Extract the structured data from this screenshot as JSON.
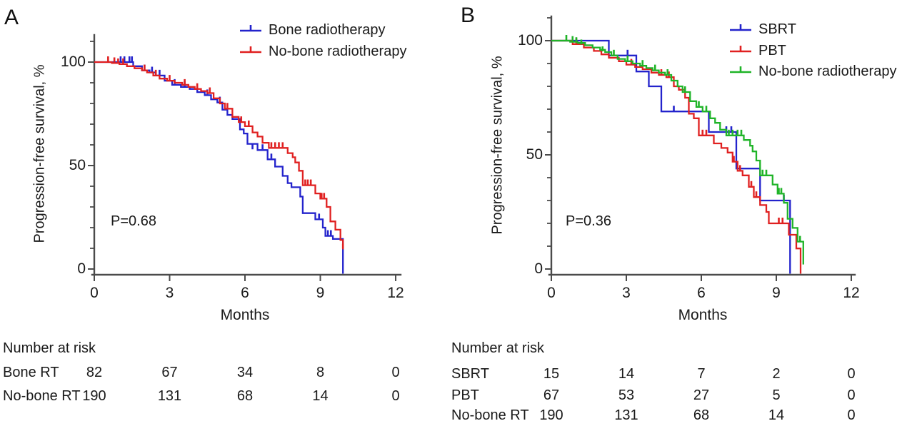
{
  "chart_data": [
    {
      "type": "line",
      "subtype": "kaplan-meier",
      "panel_label": "A",
      "xlabel": "Months",
      "ylabel": "Progression-free survival, %",
      "xlim": [
        0,
        12
      ],
      "ylim": [
        0,
        100
      ],
      "x_ticks": [
        0,
        3,
        6,
        9,
        12
      ],
      "y_ticks": [
        0,
        50,
        100
      ],
      "y_minor_step": 10,
      "grid": false,
      "legend_position": "top-right-inside",
      "p_value": "P=0.68",
      "series": [
        {
          "name": "Bone radiotherapy",
          "color": "#2323cc",
          "steps": [
            [
              0,
              100
            ],
            [
              1.55,
              98
            ],
            [
              1.9,
              96
            ],
            [
              2.2,
              95
            ],
            [
              2.45,
              93.5
            ],
            [
              2.8,
              91
            ],
            [
              3.1,
              89
            ],
            [
              3.45,
              88
            ],
            [
              3.8,
              87
            ],
            [
              4.1,
              85.5
            ],
            [
              4.4,
              84
            ],
            [
              4.65,
              82
            ],
            [
              4.9,
              80.5
            ],
            [
              5.1,
              77
            ],
            [
              5.3,
              74.5
            ],
            [
              5.5,
              72.5
            ],
            [
              5.8,
              67.5
            ],
            [
              5.95,
              65.5
            ],
            [
              6.1,
              60.5
            ],
            [
              6.5,
              57.5
            ],
            [
              6.9,
              53
            ],
            [
              7.2,
              49.5
            ],
            [
              7.5,
              45
            ],
            [
              7.7,
              41.5
            ],
            [
              7.85,
              39.5
            ],
            [
              8.2,
              35
            ],
            [
              8.3,
              27
            ],
            [
              8.8,
              24
            ],
            [
              9.1,
              20
            ],
            [
              9.2,
              16
            ],
            [
              9.5,
              14.5
            ],
            [
              9.9,
              0
            ]
          ],
          "censors": [
            [
              1.05,
              100
            ],
            [
              1.2,
              100
            ],
            [
              1.4,
              100
            ],
            [
              1.5,
              100
            ],
            [
              2.0,
              96
            ],
            [
              2.3,
              95
            ],
            [
              2.6,
              93.5
            ],
            [
              3.2,
              89
            ],
            [
              3.6,
              88
            ],
            [
              4.5,
              84
            ],
            [
              5.0,
              80.5
            ],
            [
              6.3,
              57.5
            ],
            [
              6.7,
              57.5
            ],
            [
              7.05,
              53
            ],
            [
              8.95,
              24
            ],
            [
              9.3,
              16
            ],
            [
              9.42,
              16
            ]
          ]
        },
        {
          "name": "No-bone radiotherapy",
          "color": "#e02020",
          "steps": [
            [
              0,
              100
            ],
            [
              0.7,
              99.5
            ],
            [
              1.0,
              99
            ],
            [
              1.3,
              98
            ],
            [
              1.6,
              97
            ],
            [
              1.9,
              96
            ],
            [
              2.1,
              95
            ],
            [
              2.35,
              93.5
            ],
            [
              2.6,
              92
            ],
            [
              2.9,
              91
            ],
            [
              3.2,
              90
            ],
            [
              3.5,
              89
            ],
            [
              3.75,
              88
            ],
            [
              4.0,
              87
            ],
            [
              4.25,
              86
            ],
            [
              4.5,
              85
            ],
            [
              4.75,
              82.5
            ],
            [
              5.0,
              80
            ],
            [
              5.2,
              77.5
            ],
            [
              5.5,
              73.5
            ],
            [
              5.75,
              71
            ],
            [
              6.0,
              69
            ],
            [
              6.3,
              66
            ],
            [
              6.5,
              64
            ],
            [
              6.7,
              61
            ],
            [
              6.95,
              58.5
            ],
            [
              7.7,
              56
            ],
            [
              7.9,
              54
            ],
            [
              8.0,
              51.5
            ],
            [
              8.15,
              47.5
            ],
            [
              8.3,
              40.5
            ],
            [
              8.8,
              36.5
            ],
            [
              9.0,
              34
            ],
            [
              9.25,
              30
            ],
            [
              9.4,
              23
            ],
            [
              9.6,
              19
            ],
            [
              9.8,
              14
            ],
            [
              9.9,
              9.5
            ]
          ],
          "censors": [
            [
              0.55,
              100
            ],
            [
              0.8,
              99.5
            ],
            [
              0.95,
              99
            ],
            [
              1.15,
              99
            ],
            [
              2.0,
              96
            ],
            [
              2.45,
              93.5
            ],
            [
              3.0,
              91
            ],
            [
              3.6,
              89
            ],
            [
              4.1,
              87
            ],
            [
              4.6,
              85
            ],
            [
              5.3,
              77.5
            ],
            [
              5.85,
              71
            ],
            [
              6.15,
              69
            ],
            [
              7.05,
              58.5
            ],
            [
              7.2,
              58.5
            ],
            [
              7.35,
              58.5
            ],
            [
              7.5,
              58.5
            ],
            [
              8.4,
              40.5
            ],
            [
              8.5,
              40.5
            ],
            [
              8.62,
              40.5
            ],
            [
              9.05,
              34
            ],
            [
              9.15,
              34
            ],
            [
              9.9,
              9.5
            ]
          ]
        }
      ],
      "number_at_risk": {
        "title": "Number at risk",
        "times": [
          0,
          3,
          6,
          9,
          12
        ],
        "rows": [
          {
            "label": "Bone RT",
            "values": [
              "82",
              "67",
              "34",
              "8",
              "0"
            ]
          },
          {
            "label": "No-bone RT",
            "values": [
              "190",
              "131",
              "68",
              "14",
              "0"
            ]
          }
        ]
      }
    },
    {
      "type": "line",
      "subtype": "kaplan-meier",
      "panel_label": "B",
      "xlabel": "Months",
      "ylabel": "Progression-free survival, %",
      "xlim": [
        0,
        12
      ],
      "ylim": [
        0,
        100
      ],
      "x_ticks": [
        0,
        3,
        6,
        9,
        12
      ],
      "y_ticks": [
        0,
        50,
        100
      ],
      "y_minor_step": 10,
      "grid": false,
      "legend_position": "top-right-inside",
      "p_value": "P=0.36",
      "series": [
        {
          "name": "SBRT",
          "color": "#2323cc",
          "steps": [
            [
              0,
              100
            ],
            [
              2.3,
              93.5
            ],
            [
              3.4,
              86.5
            ],
            [
              3.9,
              80
            ],
            [
              4.4,
              69
            ],
            [
              6.3,
              60
            ],
            [
              7.4,
              44
            ],
            [
              8.35,
              30
            ],
            [
              9.55,
              0
            ]
          ],
          "censors": [
            [
              3.05,
              93.5
            ],
            [
              4.9,
              69
            ],
            [
              7.0,
              60
            ],
            [
              7.2,
              60
            ],
            [
              9.3,
              30
            ]
          ]
        },
        {
          "name": "PBT",
          "color": "#e02020",
          "steps": [
            [
              0,
              100
            ],
            [
              0.85,
              98.5
            ],
            [
              1.3,
              97
            ],
            [
              1.7,
              95.5
            ],
            [
              2.0,
              94
            ],
            [
              2.3,
              92.5
            ],
            [
              2.7,
              91
            ],
            [
              3.0,
              89.5
            ],
            [
              3.35,
              88.5
            ],
            [
              3.65,
              87.5
            ],
            [
              4.0,
              86
            ],
            [
              4.3,
              85
            ],
            [
              4.6,
              84
            ],
            [
              4.9,
              80
            ],
            [
              5.1,
              78.5
            ],
            [
              5.35,
              75
            ],
            [
              5.5,
              68
            ],
            [
              5.7,
              66
            ],
            [
              5.9,
              58.5
            ],
            [
              6.5,
              55
            ],
            [
              6.8,
              53
            ],
            [
              7.05,
              51
            ],
            [
              7.25,
              47
            ],
            [
              7.45,
              43
            ],
            [
              7.65,
              41
            ],
            [
              7.9,
              36
            ],
            [
              8.1,
              31.5
            ],
            [
              8.35,
              28
            ],
            [
              8.6,
              25
            ],
            [
              8.7,
              20
            ],
            [
              9.5,
              15
            ],
            [
              9.8,
              9
            ],
            [
              9.97,
              0
            ]
          ],
          "censors": [
            [
              1.0,
              98.5
            ],
            [
              3.2,
              89.5
            ],
            [
              4.4,
              85
            ],
            [
              4.7,
              84
            ],
            [
              6.05,
              58.5
            ],
            [
              6.2,
              58.5
            ],
            [
              7.3,
              47
            ],
            [
              7.55,
              43
            ],
            [
              8.0,
              36
            ],
            [
              8.2,
              31.5
            ],
            [
              9.1,
              20
            ],
            [
              9.25,
              20
            ]
          ]
        },
        {
          "name": "No-bone radiotherapy",
          "color": "#1fb428",
          "steps": [
            [
              0,
              100
            ],
            [
              0.75,
              99.5
            ],
            [
              1.05,
              99
            ],
            [
              1.35,
              98
            ],
            [
              1.65,
              97
            ],
            [
              1.95,
              96
            ],
            [
              2.15,
              95
            ],
            [
              2.4,
              93.5
            ],
            [
              2.65,
              92
            ],
            [
              2.95,
              91
            ],
            [
              3.25,
              90
            ],
            [
              3.55,
              89
            ],
            [
              3.8,
              88
            ],
            [
              4.05,
              87
            ],
            [
              4.3,
              86
            ],
            [
              4.55,
              85
            ],
            [
              4.8,
              82.5
            ],
            [
              5.05,
              80
            ],
            [
              5.25,
              77.5
            ],
            [
              5.55,
              73.5
            ],
            [
              5.8,
              71
            ],
            [
              6.05,
              69
            ],
            [
              6.35,
              66
            ],
            [
              6.55,
              64
            ],
            [
              6.75,
              61
            ],
            [
              7.0,
              58.5
            ],
            [
              7.7,
              56.5
            ],
            [
              7.95,
              54
            ],
            [
              8.05,
              51.5
            ],
            [
              8.2,
              47.5
            ],
            [
              8.35,
              41
            ],
            [
              8.85,
              37
            ],
            [
              9.05,
              33
            ],
            [
              9.3,
              29
            ],
            [
              9.45,
              22
            ],
            [
              9.65,
              18
            ],
            [
              9.85,
              12
            ],
            [
              10.08,
              2
            ]
          ],
          "censors": [
            [
              0.6,
              100
            ],
            [
              0.85,
              99.5
            ],
            [
              1.0,
              99
            ],
            [
              1.2,
              98
            ],
            [
              2.05,
              95
            ],
            [
              2.5,
              93.5
            ],
            [
              3.05,
              91
            ],
            [
              3.65,
              89
            ],
            [
              4.15,
              87
            ],
            [
              4.65,
              85
            ],
            [
              5.35,
              77.5
            ],
            [
              5.9,
              71
            ],
            [
              6.2,
              69
            ],
            [
              7.1,
              58.5
            ],
            [
              7.25,
              58.5
            ],
            [
              7.45,
              58.5
            ],
            [
              7.6,
              58.5
            ],
            [
              8.45,
              41
            ],
            [
              8.6,
              41
            ],
            [
              9.1,
              33
            ],
            [
              9.2,
              33
            ],
            [
              9.95,
              12
            ]
          ]
        }
      ],
      "number_at_risk": {
        "title": "Number at risk",
        "times": [
          0,
          3,
          6,
          9,
          12
        ],
        "rows": [
          {
            "label": "SBRT",
            "values": [
              "15",
              "14",
              "7",
              "2",
              "0"
            ]
          },
          {
            "label": "PBT",
            "values": [
              "67",
              "53",
              "27",
              "5",
              "0"
            ]
          },
          {
            "label": "No-bone RT",
            "values": [
              "190",
              "131",
              "68",
              "14",
              "0"
            ]
          }
        ]
      }
    }
  ]
}
